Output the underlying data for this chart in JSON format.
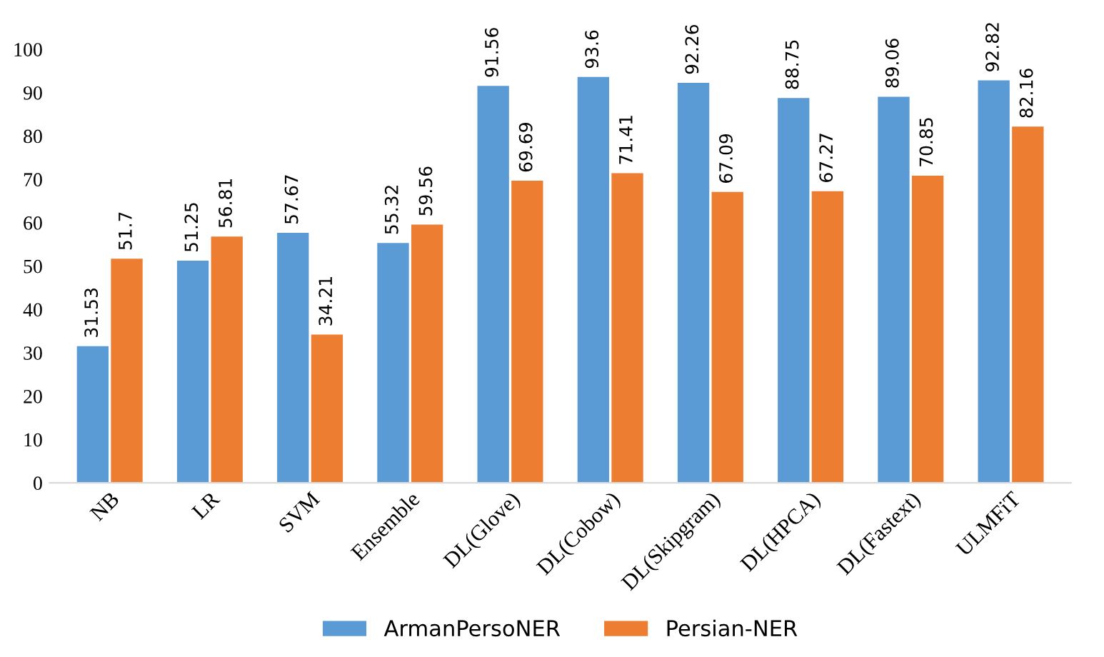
{
  "chart_data": {
    "type": "bar",
    "categories": [
      "NB",
      "LR",
      "SVM",
      "Ensemble",
      "DL(Glove)",
      "DL(Cobow)",
      "DL(Skipgram)",
      "DL(HPCA)",
      "DL(Fastext)",
      "ULMFiT"
    ],
    "series": [
      {
        "name": "ArmanPersoNER",
        "color": "#5b9bd5",
        "values": [
          31.53,
          51.25,
          57.67,
          55.32,
          91.56,
          93.6,
          92.26,
          88.75,
          89.06,
          92.82
        ]
      },
      {
        "name": "Persian-NER",
        "color": "#ed7d31",
        "values": [
          51.7,
          56.81,
          34.21,
          59.56,
          69.69,
          71.41,
          67.09,
          67.27,
          70.85,
          82.16
        ]
      }
    ],
    "ylim": [
      0,
      100
    ],
    "yticks": [
      0,
      10,
      20,
      30,
      40,
      50,
      60,
      70,
      80,
      90,
      100
    ],
    "data_labels": true,
    "legend": "bottom",
    "grid": false
  }
}
